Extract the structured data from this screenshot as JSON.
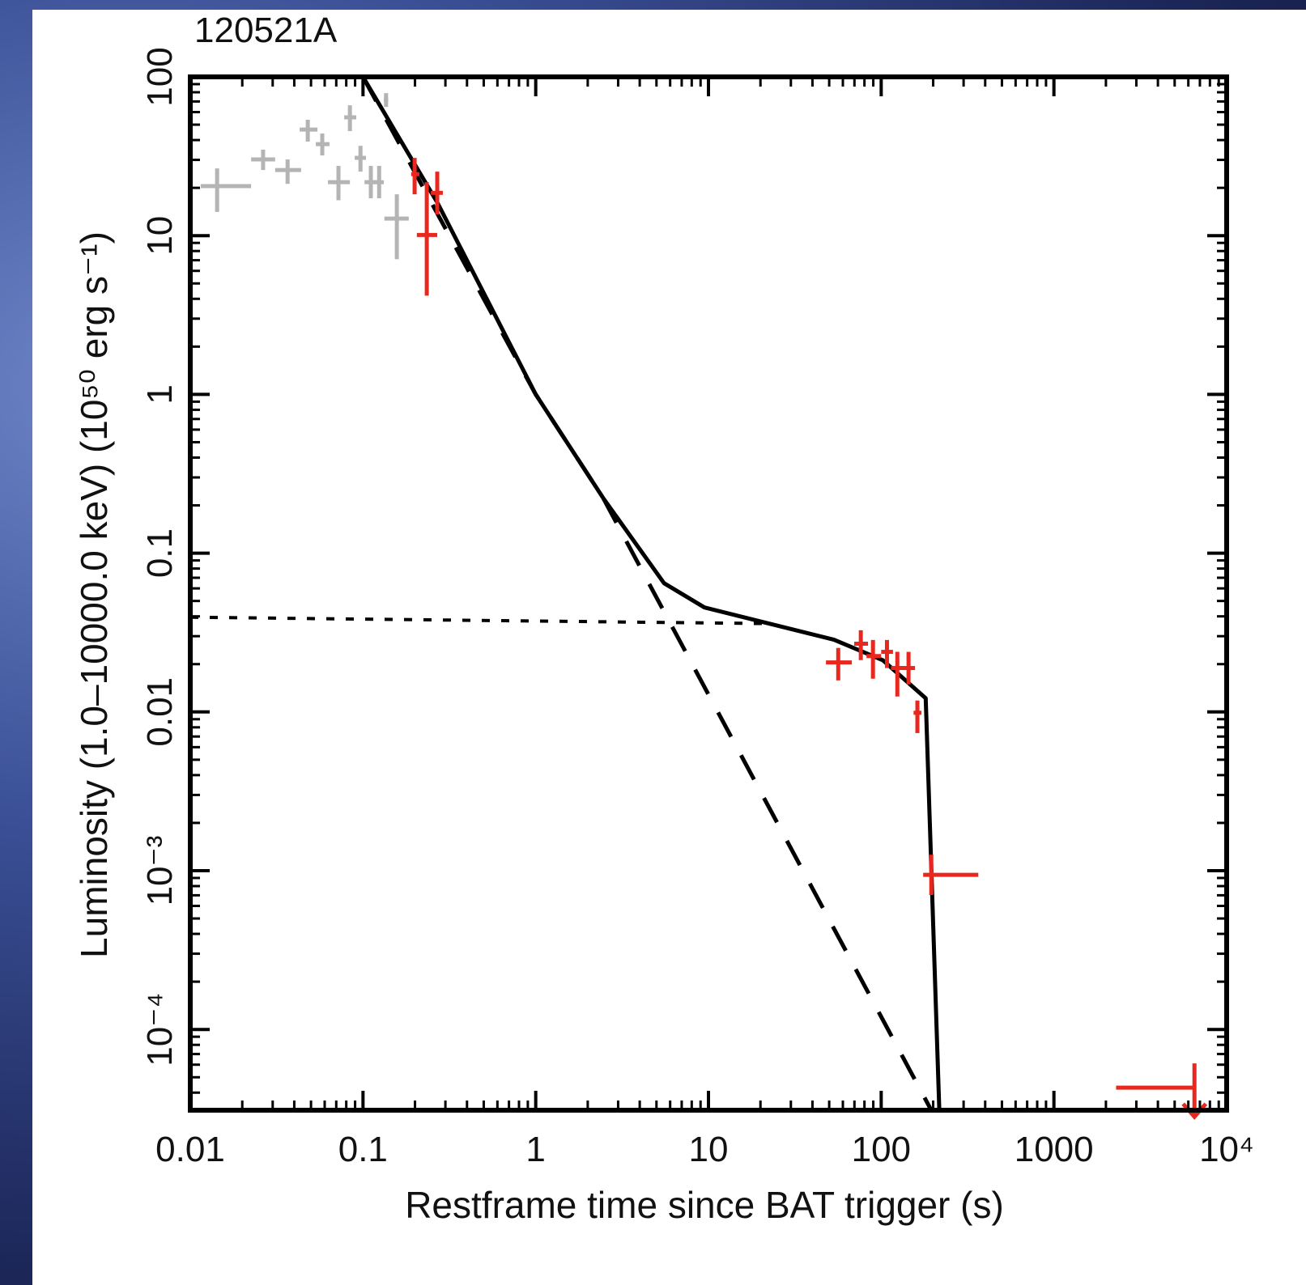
{
  "chart_data": {
    "type": "scatter",
    "title": "120521A",
    "x_label": "Restframe time since BAT trigger (s)",
    "y_label": "Luminosity (1.0–10000.0 keV) (10⁵⁰ erg s⁻¹)",
    "log_x": true,
    "log_y": true,
    "minor_ticks": true,
    "xlim": [
      0.01,
      10000
    ],
    "ylim": [
      3.1e-05,
      100
    ],
    "xticks": [
      0.01,
      0.1,
      1,
      10,
      100,
      1000,
      {
        "value": 10000,
        "label": "10⁴"
      }
    ],
    "yticks": [
      {
        "value": 0.0001,
        "label": "10⁻⁴"
      },
      {
        "value": 0.001,
        "label": "10⁻³"
      },
      0.01,
      0.1,
      1,
      10,
      100
    ],
    "series": [
      {
        "color": "#b4b4b4",
        "x": [
          0.0143,
          0.0264,
          0.0366,
          0.0479,
          0.0581,
          0.0721,
          0.084,
          0.0967,
          0.111,
          0.124,
          0.157,
          0.136
        ],
        "x_low": [
          0.0115,
          0.0225,
          0.031,
          0.043,
          0.0533,
          0.0627,
          0.0778,
          0.0895,
          0.102,
          0.116,
          0.133,
          0.132
        ],
        "x_high": [
          0.0225,
          0.031,
          0.0438,
          0.0545,
          0.064,
          0.084,
          0.0914,
          0.104,
          0.122,
          0.132,
          0.184,
          0.14
        ],
        "y": [
          20.5,
          30.2,
          25.9,
          46.6,
          37.7,
          21.7,
          55.6,
          30.9,
          21.7,
          21.7,
          12.8,
          71.9
        ],
        "y_low": [
          14.1,
          25.9,
          21.2,
          39.1,
          32,
          16.7,
          45.5,
          25.3,
          17.2,
          17.2,
          7.1,
          64.7
        ],
        "y_high": [
          26.5,
          34.8,
          30.2,
          53.7,
          44,
          27.5,
          66.2,
          36.8,
          27.5,
          27.5,
          18.2,
          79
        ]
      },
      {
        "color": "#e8281e",
        "x": [
          0.199,
          0.269,
          0.234,
          56.4,
          76.2,
          89.6,
          108,
          124,
          144,
          162,
          195
        ],
        "x_low": [
          0.19,
          0.247,
          0.205,
          47.9,
          69.8,
          82.2,
          100,
          114,
          134,
          154,
          175
        ],
        "x_high": [
          0.212,
          0.29,
          0.269,
          67.6,
          83.9,
          100,
          117,
          138,
          157,
          171,
          365
        ],
        "y": [
          24.4,
          18.6,
          10.1,
          0.0205,
          0.0269,
          0.0225,
          0.0239,
          0.0189,
          0.0189,
          0.00988,
          0.000942
        ],
        "y_low": [
          18.2,
          13.6,
          4.19,
          0.0158,
          0.0212,
          0.0162,
          0.0189,
          0.0125,
          0.0149,
          0.00736,
          0.000703
        ],
        "y_high": [
          30.9,
          25.3,
          21.7,
          0.0253,
          0.0327,
          0.0284,
          0.0284,
          0.0239,
          0.0239,
          0.0118,
          0.00126
        ]
      }
    ],
    "upper_limits": {
      "color": "#e8281e",
      "x": [
        6510
      ],
      "x_low": [
        2290
      ],
      "x_high": [
        6510
      ],
      "y": [
        4.3e-05
      ]
    },
    "lines": [
      {
        "style": "solid",
        "color": "#000000",
        "x": [
          0.1,
          0.269,
          1,
          2.46,
          5.53,
          9.48,
          22.5,
          53.3,
          102,
          181,
          217
        ],
        "y": [
          100,
          16.2,
          1,
          0.222,
          0.0647,
          0.0455,
          0.036,
          0.0285,
          0.0212,
          0.0122,
          3.1e-05
        ]
      },
      {
        "style": "dashed",
        "color": "#000000",
        "x": [
          0.1,
          1,
          2.46,
          195
        ],
        "y": [
          100,
          1,
          0.222,
          3.1e-05
        ]
      },
      {
        "style": "dotted",
        "color": "#000000",
        "x": [
          0.01,
          22.5
        ],
        "y": [
          0.0395,
          0.036
        ]
      }
    ]
  }
}
